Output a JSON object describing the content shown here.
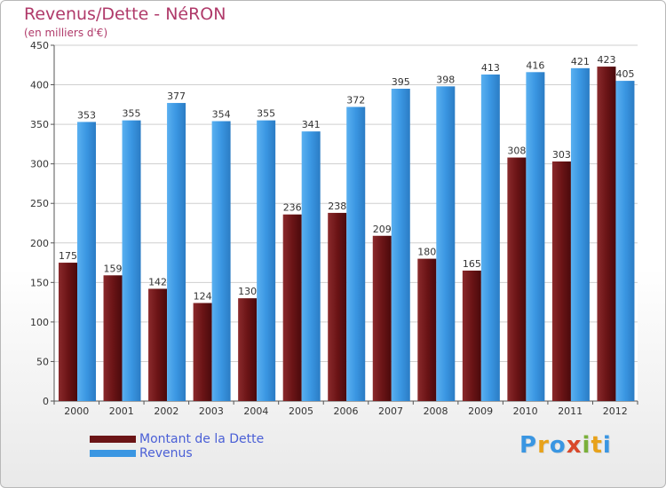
{
  "header": {
    "title": "Revenus/Dette - NéRON",
    "subtitle": "(en milliers d'€)"
  },
  "chart_data": {
    "type": "bar",
    "categories": [
      "2000",
      "2001",
      "2002",
      "2003",
      "2004",
      "2005",
      "2006",
      "2007",
      "2008",
      "2009",
      "2010",
      "2011",
      "2012"
    ],
    "series": [
      {
        "name": "Montant de la Dette",
        "color": "#6b1416",
        "values": [
          175,
          159,
          142,
          124,
          130,
          236,
          238,
          209,
          180,
          165,
          308,
          303,
          423
        ]
      },
      {
        "name": "Revenus",
        "color": "#3a96e2",
        "values": [
          353,
          355,
          377,
          354,
          355,
          341,
          372,
          395,
          398,
          413,
          416,
          421,
          405
        ]
      }
    ],
    "ylim": [
      0,
      450
    ],
    "yticks": [
      "0",
      "50",
      "100",
      "150",
      "200",
      "250",
      "300",
      "350",
      "400",
      "450"
    ],
    "grid": true,
    "legend_position": "bottom-left"
  },
  "legend": {
    "items": [
      {
        "label": "Montant de la Dette",
        "color": "#6b1416"
      },
      {
        "label": "Revenus",
        "color": "#3a96e2"
      }
    ]
  },
  "logo": {
    "letters": [
      "P",
      "r",
      "o",
      "x",
      "i",
      "t",
      "i"
    ],
    "colors": [
      "#3a96e2",
      "#e8a21a",
      "#3a96e2",
      "#d9482a",
      "#7ab03a",
      "#e8a21a",
      "#3a96e2"
    ]
  }
}
